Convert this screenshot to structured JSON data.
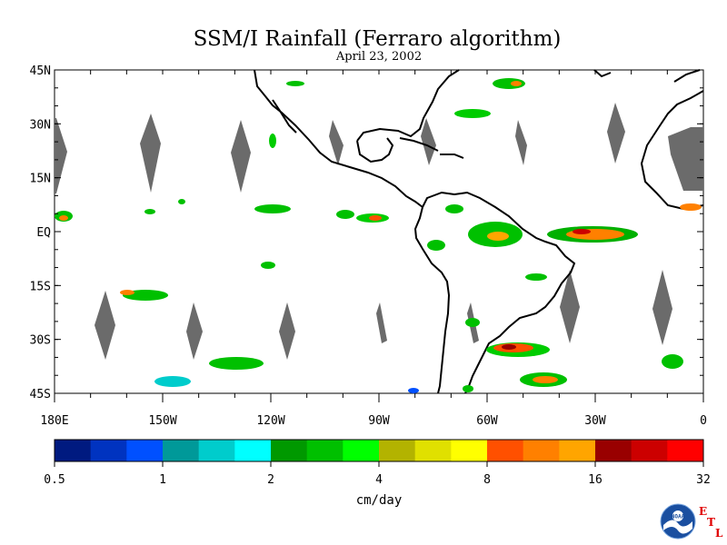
{
  "title": "SSM/I Rainfall (Ferraro algorithm)",
  "date": "April 23, 2002",
  "map": {
    "lat_labels": [
      "45N",
      "30N",
      "15N",
      "EQ",
      "15S",
      "30S",
      "45S"
    ],
    "lon_labels": [
      "180E",
      "150W",
      "120W",
      "90W",
      "60W",
      "30W",
      "0"
    ],
    "lat_range": [
      -45,
      45
    ],
    "lon_range": [
      -180,
      0
    ],
    "land_outline_color": "#000000",
    "no_data_color": "#6b6b6b"
  },
  "colorbar": {
    "unit_label": "cm/day",
    "tick_labels": [
      "0.5",
      "1",
      "2",
      "4",
      "8",
      "16",
      "32"
    ],
    "colors": [
      "#001a80",
      "#0033c0",
      "#0050ff",
      "#009999",
      "#00cccc",
      "#00ffff",
      "#009900",
      "#00c000",
      "#00ff00",
      "#b3b300",
      "#e0e000",
      "#ffff00",
      "#ff5000",
      "#ff8000",
      "#ffa500",
      "#990000",
      "#cc0000",
      "#ff0000"
    ]
  },
  "logo": {
    "agency": "NOAA",
    "lab_letters": [
      "E",
      "T",
      "L"
    ]
  }
}
